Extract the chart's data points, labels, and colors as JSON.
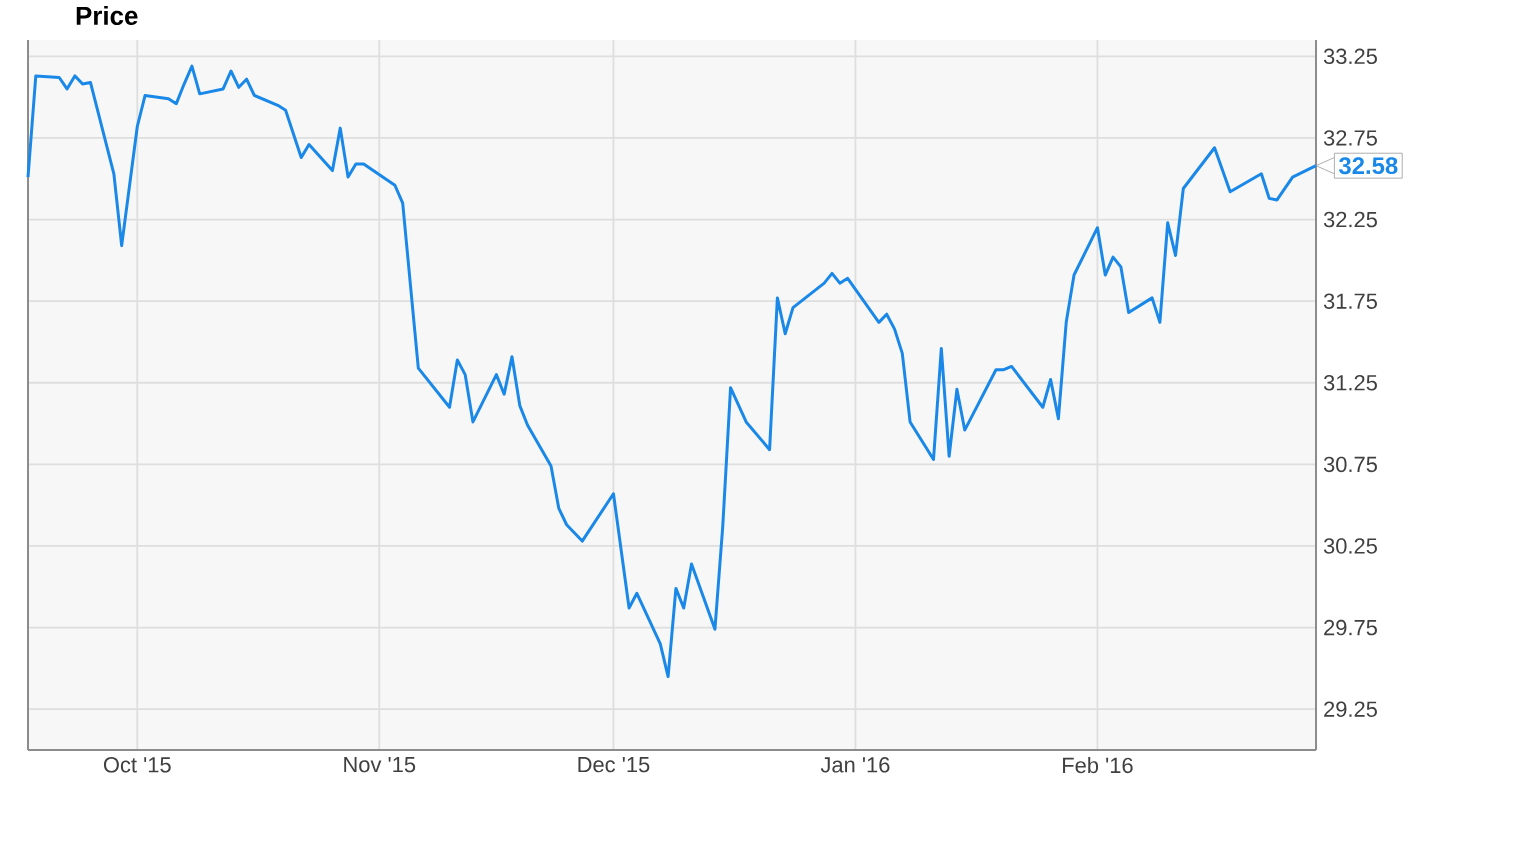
{
  "chart_data": {
    "type": "line",
    "title": "Price",
    "x": [
      "2015-09-17",
      "2015-09-18",
      "2015-09-21",
      "2015-09-22",
      "2015-09-23",
      "2015-09-24",
      "2015-09-25",
      "2015-09-28",
      "2015-09-29",
      "2015-10-01",
      "2015-10-02",
      "2015-10-05",
      "2015-10-06",
      "2015-10-07",
      "2015-10-08",
      "2015-10-09",
      "2015-10-12",
      "2015-10-13",
      "2015-10-14",
      "2015-10-15",
      "2015-10-16",
      "2015-10-19",
      "2015-10-20",
      "2015-10-22",
      "2015-10-23",
      "2015-10-26",
      "2015-10-27",
      "2015-10-28",
      "2015-10-29",
      "2015-10-30",
      "2015-11-03",
      "2015-11-04",
      "2015-11-06",
      "2015-11-10",
      "2015-11-11",
      "2015-11-12",
      "2015-11-13",
      "2015-11-16",
      "2015-11-17",
      "2015-11-18",
      "2015-11-19",
      "2015-11-20",
      "2015-11-23",
      "2015-11-24",
      "2015-11-25",
      "2015-11-27",
      "2015-12-01",
      "2015-12-03",
      "2015-12-04",
      "2015-12-07",
      "2015-12-08",
      "2015-12-09",
      "2015-12-10",
      "2015-12-11",
      "2015-12-14",
      "2015-12-15",
      "2015-12-16",
      "2015-12-18",
      "2015-12-21",
      "2015-12-22",
      "2015-12-23",
      "2015-12-24",
      "2015-12-28",
      "2015-12-29",
      "2015-12-30",
      "2015-12-31",
      "2016-01-04",
      "2016-01-05",
      "2016-01-06",
      "2016-01-07",
      "2016-01-08",
      "2016-01-11",
      "2016-01-12",
      "2016-01-13",
      "2016-01-14",
      "2016-01-15",
      "2016-01-19",
      "2016-01-20",
      "2016-01-21",
      "2016-01-25",
      "2016-01-26",
      "2016-01-27",
      "2016-01-28",
      "2016-01-29",
      "2016-02-01",
      "2016-02-02",
      "2016-02-03",
      "2016-02-04",
      "2016-02-05",
      "2016-02-08",
      "2016-02-09",
      "2016-02-10",
      "2016-02-11",
      "2016-02-12",
      "2016-02-16",
      "2016-02-18",
      "2016-02-22",
      "2016-02-23",
      "2016-02-24",
      "2016-02-26",
      "2016-02-29"
    ],
    "series": [
      {
        "color": "#1a88e8",
        "values": [
          32.51,
          33.13,
          33.12,
          33.05,
          33.13,
          33.08,
          33.09,
          32.53,
          32.09,
          32.82,
          33.01,
          32.99,
          32.96,
          33.08,
          33.19,
          33.02,
          33.05,
          33.16,
          33.06,
          33.11,
          33.01,
          32.95,
          32.92,
          32.63,
          32.71,
          32.55,
          32.81,
          32.51,
          32.59,
          32.59,
          32.46,
          32.35,
          31.34,
          31.1,
          31.39,
          31.3,
          31.01,
          31.3,
          31.18,
          31.41,
          31.11,
          30.99,
          30.74,
          30.48,
          30.38,
          30.28,
          30.57,
          29.87,
          29.96,
          29.65,
          29.45,
          29.99,
          29.87,
          30.14,
          29.74,
          30.37,
          31.22,
          31.01,
          30.84,
          31.77,
          31.55,
          31.71,
          31.86,
          31.92,
          31.86,
          31.89,
          31.62,
          31.67,
          31.58,
          31.43,
          31.01,
          30.78,
          31.46,
          30.8,
          31.21,
          30.96,
          31.33,
          31.33,
          31.35,
          31.1,
          31.27,
          31.03,
          31.62,
          31.91,
          32.2,
          31.91,
          32.02,
          31.96,
          31.68,
          31.77,
          31.62,
          32.23,
          32.03,
          32.44,
          32.69,
          32.42,
          32.53,
          32.38,
          32.37,
          32.51,
          32.58
        ]
      }
    ],
    "xlim": [
      "2015-09-17",
      "2016-02-29"
    ],
    "xticks": [
      {
        "value": "2015-10-01",
        "label": "Oct '15"
      },
      {
        "value": "2015-11-01",
        "label": "Nov '15"
      },
      {
        "value": "2015-12-01",
        "label": "Dec '15"
      },
      {
        "value": "2016-01-01",
        "label": "Jan '16"
      },
      {
        "value": "2016-02-01",
        "label": "Feb '16"
      }
    ],
    "ylim": [
      29.0,
      33.35
    ],
    "yticks": [
      29.25,
      29.75,
      30.25,
      30.75,
      31.25,
      31.75,
      32.25,
      32.75,
      33.25
    ],
    "grid": true,
    "annotations": [
      {
        "text": "32.58",
        "x": "2016-02-29",
        "y": 32.58
      }
    ]
  }
}
